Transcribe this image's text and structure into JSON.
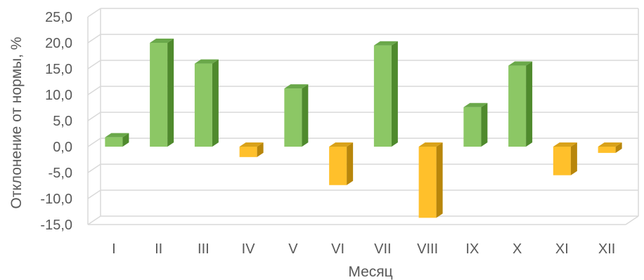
{
  "chart_data": {
    "type": "bar",
    "xlabel": "Месяц",
    "ylabel": "Отклонение от нормы, %",
    "ylim": [
      -15,
      25
    ],
    "yticks": [
      25,
      20,
      15,
      10,
      5,
      0,
      -5,
      -10,
      -15
    ],
    "ytick_labels": [
      "25,0",
      "20,0",
      "15,0",
      "10,0",
      "5,0",
      "0,0",
      "-5,0",
      "-10,0",
      "-15,0"
    ],
    "categories": [
      "I",
      "II",
      "III",
      "IV",
      "V",
      "VI",
      "VII",
      "VIII",
      "IX",
      "X",
      "XI",
      "XII"
    ],
    "values": [
      1.8,
      20.0,
      16.0,
      -2.0,
      11.2,
      -7.4,
      19.5,
      -13.7,
      7.6,
      15.6,
      -5.5,
      -1.2
    ],
    "grid": true,
    "legend": "none",
    "colors": {
      "positive_front": "#8cc765",
      "positive_side": "#4f8a2d",
      "positive_top": "#6aa84a",
      "negative_front": "#ffc02b",
      "negative_side": "#b8860b",
      "negative_top": "#d9a21a",
      "grid": "#d9d9d9",
      "text": "#595959"
    }
  }
}
